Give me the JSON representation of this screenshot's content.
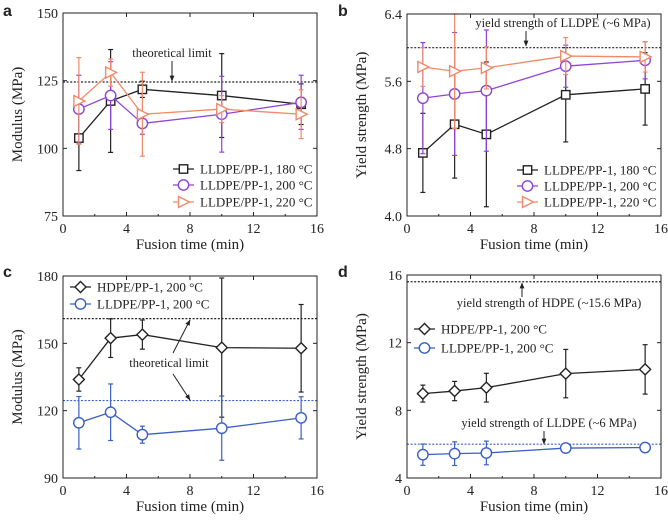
{
  "chart_data": [
    {
      "panel": "a",
      "type": "line",
      "xlabel": "Fusion time (min)",
      "ylabel": "Modulus (MPa)",
      "xlim": [
        0,
        16
      ],
      "ylim": [
        75,
        150
      ],
      "xticks": [
        "0",
        "4",
        "8",
        "12",
        "16"
      ],
      "yticks": [
        "75",
        "100",
        "125",
        "150"
      ],
      "legend_position": "bottom-right",
      "x": [
        1,
        3,
        5,
        10,
        15
      ],
      "series": [
        {
          "name": "LLDPE/PP-1, 180 °C",
          "color": "#222222",
          "marker": "square",
          "values": [
            103.8,
            117.5,
            121.8,
            119.5,
            116.3
          ],
          "errors": [
            12,
            19,
            3,
            15.5,
            7.5
          ]
        },
        {
          "name": "LLDPE/PP-1, 200 °C",
          "color": "#8e44d6",
          "marker": "circle",
          "values": [
            114.5,
            119.5,
            109.2,
            112.6,
            117.0
          ],
          "errors": [
            12.5,
            12.5,
            4,
            14,
            10
          ]
        },
        {
          "name": "LLDPE/PP-1, 220 °C",
          "color": "#f0896a",
          "marker": "triangle-right",
          "values": [
            117.5,
            128.0,
            112.6,
            114.5,
            112.6
          ],
          "errors": [
            16,
            5,
            15.5,
            5,
            9
          ]
        }
      ],
      "reference_lines": [
        {
          "value": 124.5,
          "color": "#222222",
          "label": "theoretical limit"
        }
      ]
    },
    {
      "panel": "b",
      "type": "line",
      "xlabel": "Fusion time (min)",
      "ylabel": "Yield strength (MPa)",
      "xlim": [
        0,
        16
      ],
      "ylim": [
        4.0,
        6.4
      ],
      "xticks": [
        "0",
        "4",
        "8",
        "12",
        "16"
      ],
      "yticks": [
        "4.0",
        "4.8",
        "5.6",
        "6.4"
      ],
      "legend_position": "bottom-right",
      "x": [
        1,
        3,
        5,
        10,
        15
      ],
      "series": [
        {
          "name": "LLDPE/PP-1, 180 °C",
          "color": "#222222",
          "marker": "square",
          "values": [
            4.75,
            5.09,
            4.97,
            5.44,
            5.51
          ],
          "errors": [
            0.47,
            0.64,
            0.86,
            0.56,
            0.43
          ]
        },
        {
          "name": "LLDPE/PP-1, 200 °C",
          "color": "#8e44d6",
          "marker": "circle",
          "values": [
            5.4,
            5.45,
            5.49,
            5.78,
            5.85
          ],
          "errors": [
            0.66,
            0.73,
            0.72,
            0.25,
            0.22
          ]
        },
        {
          "name": "LLDPE/PP-1, 220 °C",
          "color": "#f0896a",
          "marker": "triangle-right",
          "values": [
            5.77,
            5.72,
            5.76,
            5.9,
            5.89
          ],
          "errors": [
            0.23,
            0.68,
            0.25,
            0.22,
            0.18
          ]
        }
      ],
      "reference_lines": [
        {
          "value": 6.0,
          "color": "#222222",
          "label": "yield strength of LLDPE (~6 MPa)"
        }
      ]
    },
    {
      "panel": "c",
      "type": "line",
      "xlabel": "Fusion time (min)",
      "ylabel": "Modulus (MPa)",
      "xlim": [
        0,
        16
      ],
      "ylim": [
        90,
        180
      ],
      "xticks": [
        "0",
        "4",
        "8",
        "12",
        "16"
      ],
      "yticks": [
        "90",
        "120",
        "150",
        "180"
      ],
      "legend_position": "top-left",
      "x": [
        1,
        3,
        5,
        10,
        15
      ],
      "series": [
        {
          "name": "HDPE/PP-1, 200 °C",
          "color": "#222222",
          "marker": "diamond",
          "values": [
            133.9,
            152.3,
            153.9,
            148.1,
            147.8
          ],
          "errors": [
            5.2,
            8.6,
            6.5,
            31,
            19.5
          ]
        },
        {
          "name": "LLDPE/PP-1, 200 °C",
          "color": "#3b5fc4",
          "marker": "circle",
          "values": [
            114.6,
            119.3,
            109.3,
            112.2,
            116.8
          ],
          "errors": [
            11.7,
            12.6,
            3.8,
            14.3,
            9.4
          ]
        }
      ],
      "reference_lines": [
        {
          "value": 161.0,
          "color": "#222222",
          "label": "theoretical limit"
        },
        {
          "value": 124.5,
          "color": "#3b5fc4",
          "label": ""
        }
      ]
    },
    {
      "panel": "d",
      "type": "line",
      "xlabel": "Fusion time (min)",
      "ylabel": "Yield strength (MPa)",
      "xlim": [
        0,
        16
      ],
      "ylim": [
        4,
        16
      ],
      "xticks": [
        "0",
        "4",
        "8",
        "12",
        "16"
      ],
      "yticks": [
        "4",
        "8",
        "12",
        "16"
      ],
      "legend_position": "top-left",
      "x": [
        1,
        3,
        5,
        10,
        15
      ],
      "series": [
        {
          "name": "HDPE/PP-1, 200 °C",
          "color": "#222222",
          "marker": "diamond",
          "values": [
            8.99,
            9.14,
            9.34,
            10.17,
            10.42
          ],
          "errors": [
            0.5,
            0.57,
            0.85,
            1.43,
            1.46
          ]
        },
        {
          "name": "LLDPE/PP-1, 200 °C",
          "color": "#3b5fc4",
          "marker": "circle",
          "values": [
            5.38,
            5.44,
            5.48,
            5.77,
            5.8
          ],
          "errors": [
            0.63,
            0.7,
            0.7,
            0.1,
            0.08
          ]
        }
      ],
      "reference_lines": [
        {
          "value": 15.6,
          "color": "#222222",
          "label": "yield strength of HDPE (~15.6 MPa)"
        },
        {
          "value": 6.0,
          "color": "#3b5fc4",
          "label": "yield strength of LLDPE (~6 MPa)"
        }
      ]
    }
  ]
}
